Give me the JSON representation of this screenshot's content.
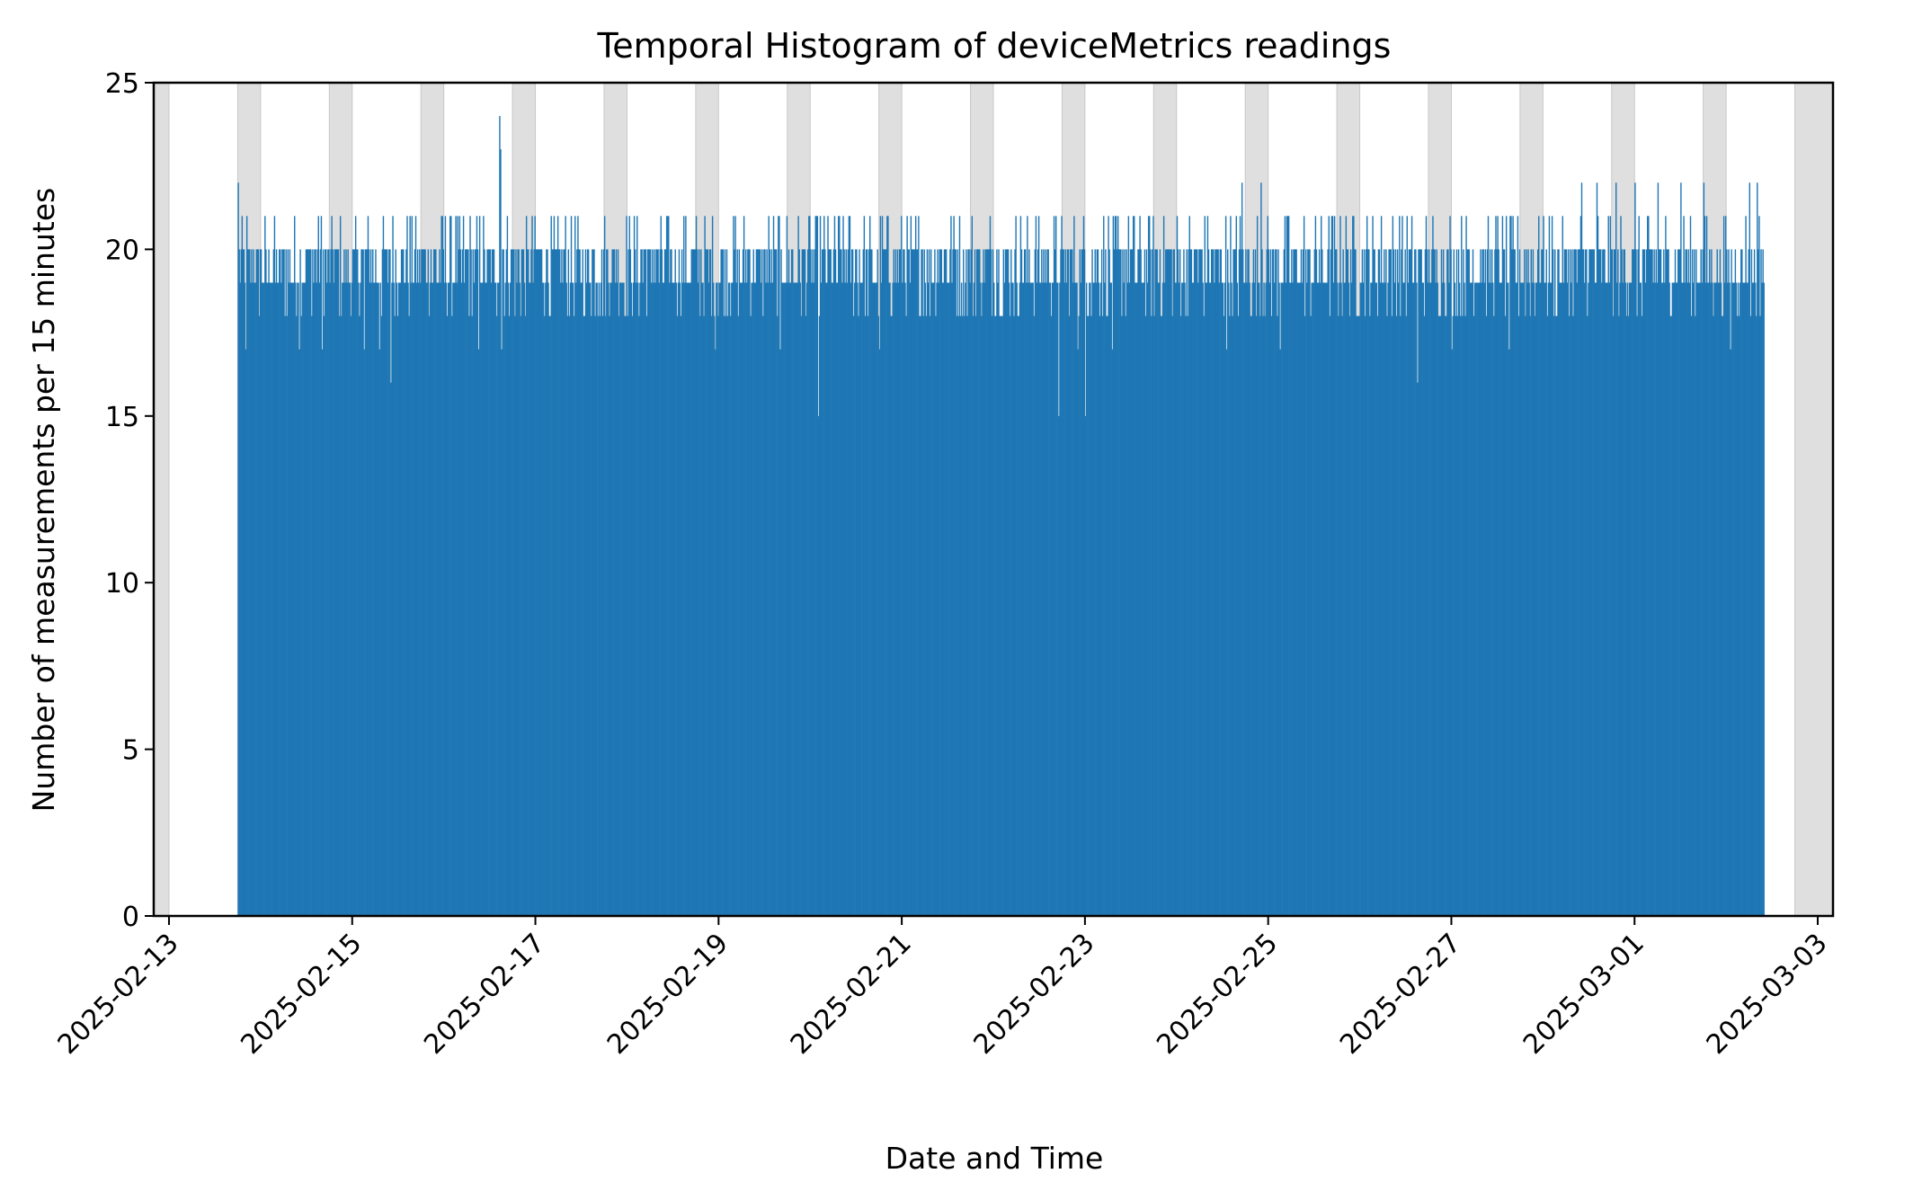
{
  "chart_data": {
    "type": "bar",
    "title": "Temporal Histogram of deviceMetrics readings",
    "xlabel": "Date and Time",
    "ylabel": "Number of measurements per 15 minutes",
    "bin_minutes": 15,
    "xlim": [
      "2025-02-12T20:00",
      "2025-03-03T04:00"
    ],
    "ylim": [
      0,
      25
    ],
    "y_ticks": [
      0,
      5,
      10,
      15,
      20,
      25
    ],
    "x_ticks": [
      "2025-02-13",
      "2025-02-15",
      "2025-02-17",
      "2025-02-19",
      "2025-02-21",
      "2025-02-23",
      "2025-02-25",
      "2025-02-27",
      "2025-03-01",
      "2025-03-03"
    ],
    "data_start": "2025-02-13T18:00",
    "data_end": "2025-03-02T10:00",
    "typical_range": [
      18,
      21
    ],
    "notable_bins": [
      {
        "x": "2025-02-13T18:00",
        "y": 22
      },
      {
        "x": "2025-02-13T20:00",
        "y": 17
      },
      {
        "x": "2025-02-14T10:00",
        "y": 17
      },
      {
        "x": "2025-02-14T16:00",
        "y": 17
      },
      {
        "x": "2025-02-15T03:00",
        "y": 17
      },
      {
        "x": "2025-02-15T07:00",
        "y": 17
      },
      {
        "x": "2025-02-15T10:00",
        "y": 16
      },
      {
        "x": "2025-02-16T09:00",
        "y": 17
      },
      {
        "x": "2025-02-16T14:30",
        "y": 24
      },
      {
        "x": "2025-02-16T14:45",
        "y": 23
      },
      {
        "x": "2025-02-16T15:00",
        "y": 17
      },
      {
        "x": "2025-02-18T23:00",
        "y": 17
      },
      {
        "x": "2025-02-19T16:00",
        "y": 17
      },
      {
        "x": "2025-02-20T02:00",
        "y": 15
      },
      {
        "x": "2025-02-20T18:00",
        "y": 17
      },
      {
        "x": "2025-02-22T17:00",
        "y": 15
      },
      {
        "x": "2025-02-22T22:00",
        "y": 17
      },
      {
        "x": "2025-02-23T00:00",
        "y": 15
      },
      {
        "x": "2025-02-23T07:00",
        "y": 17
      },
      {
        "x": "2025-02-24T13:00",
        "y": 17
      },
      {
        "x": "2025-02-24T17:00",
        "y": 22
      },
      {
        "x": "2025-02-24T22:00",
        "y": 22
      },
      {
        "x": "2025-02-25T03:00",
        "y": 17
      },
      {
        "x": "2025-02-26T15:00",
        "y": 16
      },
      {
        "x": "2025-02-27T00:00",
        "y": 17
      },
      {
        "x": "2025-02-27T15:00",
        "y": 17
      },
      {
        "x": "2025-02-28T10:00",
        "y": 22
      },
      {
        "x": "2025-02-28T14:00",
        "y": 22
      },
      {
        "x": "2025-02-28T19:00",
        "y": 22
      },
      {
        "x": "2025-03-01T00:00",
        "y": 22
      },
      {
        "x": "2025-03-01T06:00",
        "y": 22
      },
      {
        "x": "2025-03-01T12:00",
        "y": 22
      },
      {
        "x": "2025-03-01T18:00",
        "y": 22
      },
      {
        "x": "2025-03-02T01:00",
        "y": 17
      },
      {
        "x": "2025-03-02T06:00",
        "y": 22
      },
      {
        "x": "2025-03-02T08:00",
        "y": 22
      }
    ],
    "shaded_intervals": [
      [
        "2025-02-12T20:00",
        "2025-02-13T00:00"
      ],
      [
        "2025-02-13T18:00",
        "2025-02-14T00:00"
      ],
      [
        "2025-02-14T18:00",
        "2025-02-15T00:00"
      ],
      [
        "2025-02-15T18:00",
        "2025-02-16T00:00"
      ],
      [
        "2025-02-16T18:00",
        "2025-02-17T00:00"
      ],
      [
        "2025-02-17T18:00",
        "2025-02-18T00:00"
      ],
      [
        "2025-02-18T18:00",
        "2025-02-19T00:00"
      ],
      [
        "2025-02-19T18:00",
        "2025-02-20T00:00"
      ],
      [
        "2025-02-20T18:00",
        "2025-02-21T00:00"
      ],
      [
        "2025-02-21T18:00",
        "2025-02-22T00:00"
      ],
      [
        "2025-02-22T18:00",
        "2025-02-23T00:00"
      ],
      [
        "2025-02-23T18:00",
        "2025-02-24T00:00"
      ],
      [
        "2025-02-24T18:00",
        "2025-02-25T00:00"
      ],
      [
        "2025-02-25T18:00",
        "2025-02-26T00:00"
      ],
      [
        "2025-02-26T18:00",
        "2025-02-27T00:00"
      ],
      [
        "2025-02-27T18:00",
        "2025-02-28T00:00"
      ],
      [
        "2025-02-28T18:00",
        "2025-03-01T00:00"
      ],
      [
        "2025-03-01T18:00",
        "2025-03-02T00:00"
      ],
      [
        "2025-03-02T18:00",
        "2025-03-03T04:00"
      ]
    ],
    "grid": false,
    "legend": "none",
    "colors": {
      "bar": "#1f77b4",
      "shade": "#dfdfdf",
      "axis": "#000000"
    }
  }
}
